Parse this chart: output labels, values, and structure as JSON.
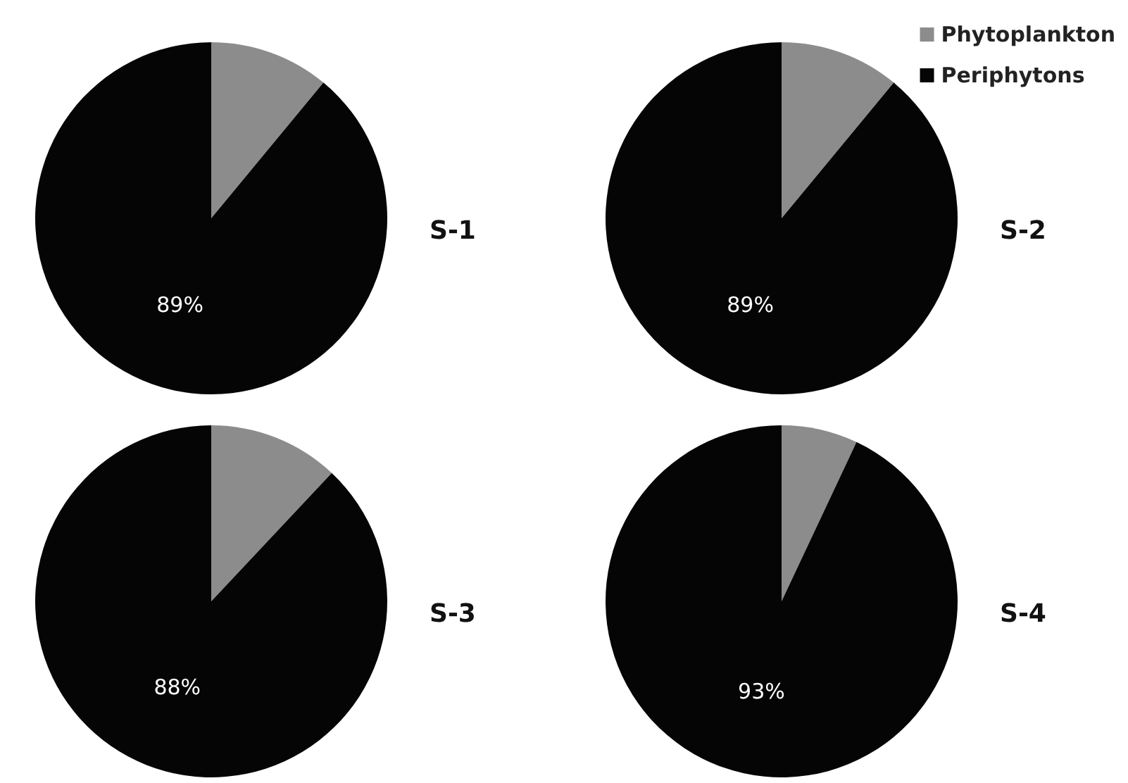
{
  "chart_data": [
    {
      "type": "pie",
      "title": "S-1",
      "categories": [
        null,
        null
      ],
      "values": [
        11,
        89
      ],
      "colors": [
        "#8c8c8c",
        "#050505"
      ],
      "value_labels": [
        null,
        "89%"
      ]
    },
    {
      "type": "pie",
      "title": "S-2",
      "categories": [
        "Phytoplankton",
        "Periphytons"
      ],
      "values": [
        11,
        89
      ],
      "colors": [
        "#8c8c8c",
        "#050505"
      ],
      "value_labels": [
        null,
        "89%"
      ],
      "legend": "top right"
    },
    {
      "type": "pie",
      "title": "S-3",
      "categories": [
        null,
        null
      ],
      "values": [
        12,
        88
      ],
      "colors": [
        "#8c8c8c",
        "#050505"
      ],
      "value_labels": [
        null,
        "88%"
      ]
    },
    {
      "type": "pie",
      "title": "S-4",
      "categories": [
        null,
        null
      ],
      "values": [
        7,
        93
      ],
      "colors": [
        "#8c8c8c",
        "#050505"
      ],
      "value_labels": [
        null,
        "93%"
      ]
    }
  ]
}
